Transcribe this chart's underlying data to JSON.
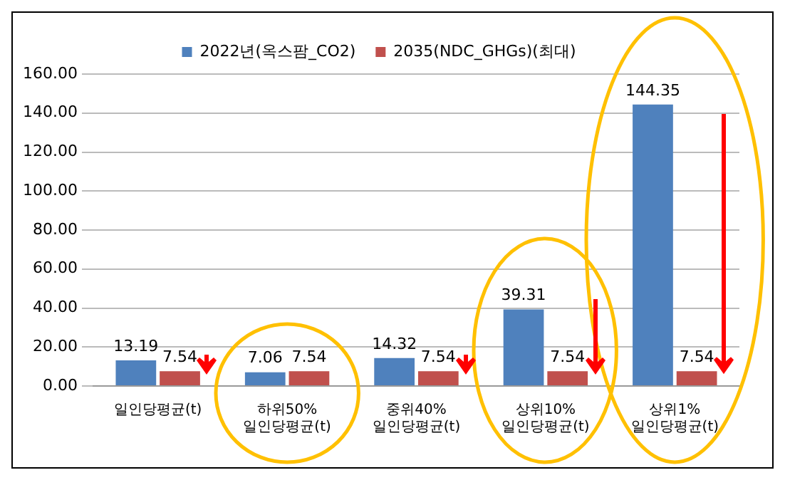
{
  "chart_data": {
    "type": "bar",
    "categories": [
      "일인당평균(t)",
      "하위50%\n일인당평균(t)",
      "중위40%\n일인당평균(t)",
      "상위10%\n일인당평균(t)",
      "상위1%\n일인당평균(t)"
    ],
    "series": [
      {
        "name": "2022년(옥스팜_CO2)",
        "color": "#4f81bd",
        "values": [
          13.19,
          7.06,
          14.32,
          39.31,
          144.35
        ]
      },
      {
        "name": "2035(NDC_GHGs)(최대)",
        "color": "#c0504d",
        "values": [
          7.54,
          7.54,
          7.54,
          7.54,
          7.54
        ]
      }
    ],
    "ylim": [
      0,
      160
    ],
    "yticks": [
      {
        "value": 0,
        "label": "0.00"
      },
      {
        "value": 20,
        "label": "20.00"
      },
      {
        "value": 40,
        "label": "40.00"
      },
      {
        "value": 60,
        "label": "60.00"
      },
      {
        "value": 80,
        "label": "80.00"
      },
      {
        "value": 100,
        "label": "100.00"
      },
      {
        "value": 120,
        "label": "120.00"
      },
      {
        "value": 140,
        "label": "140.00"
      },
      {
        "value": 160,
        "label": "160.00"
      }
    ],
    "grid": "y",
    "legend": "top",
    "data_labels": true
  }
}
